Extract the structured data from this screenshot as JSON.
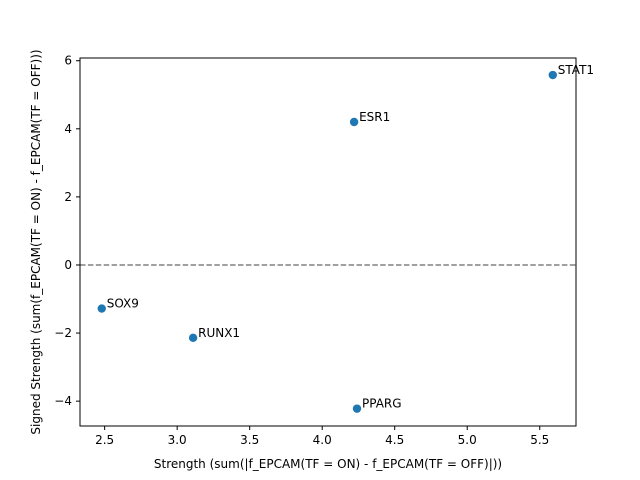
{
  "chart_data": {
    "type": "scatter",
    "title": "",
    "xlabel": "Strength (sum(|f_EPCAM(TF = ON) - f_EPCAM(TF = OFF)|))",
    "ylabel": "Signed Strength (sum(f_EPCAM(TF = ON) - f_EPCAM(TF = OFF)))",
    "xlim": [
      2.33,
      5.75
    ],
    "ylim": [
      -4.73,
      6.08
    ],
    "xticks": [
      2.5,
      3.0,
      3.5,
      4.0,
      4.5,
      5.0,
      5.5
    ],
    "xtick_labels": [
      "2.5",
      "3.0",
      "3.5",
      "4.0",
      "4.5",
      "5.0",
      "5.5"
    ],
    "yticks": [
      -4,
      -2,
      0,
      2,
      4,
      6
    ],
    "ytick_labels": [
      "−4",
      "−2",
      "0",
      "2",
      "4",
      "6"
    ],
    "reference_line": {
      "y": 0,
      "style": "dashed",
      "color": "#808080"
    },
    "point_color": "#1f77b4",
    "grid": false,
    "points": [
      {
        "label": "STAT1",
        "x": 5.59,
        "y": 5.58
      },
      {
        "label": "ESR1",
        "x": 4.22,
        "y": 4.2
      },
      {
        "label": "SOX9",
        "x": 2.48,
        "y": -1.28
      },
      {
        "label": "RUNX1",
        "x": 3.11,
        "y": -2.14
      },
      {
        "label": "PPARG",
        "x": 4.24,
        "y": -4.22
      }
    ]
  }
}
